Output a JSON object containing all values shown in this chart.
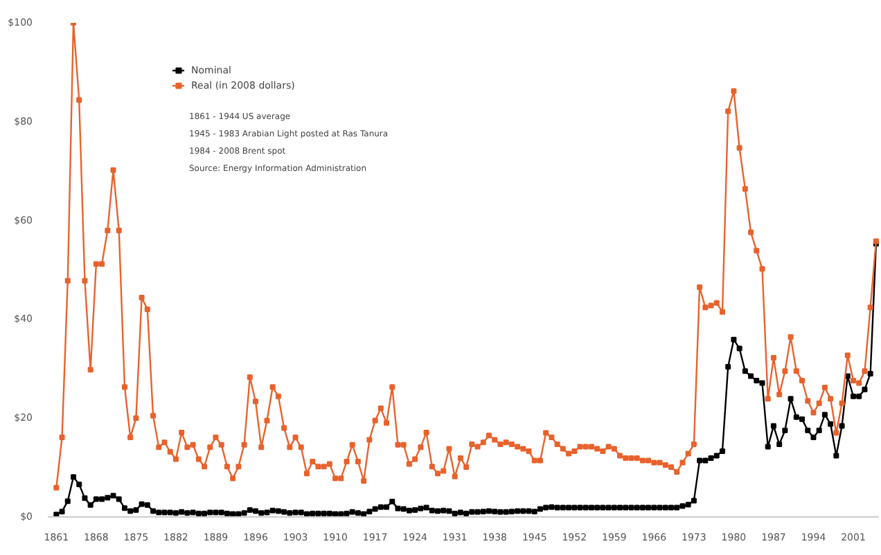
{
  "chart_data": {
    "type": "line",
    "x": [
      1861,
      1862,
      1863,
      1864,
      1865,
      1866,
      1867,
      1868,
      1869,
      1870,
      1871,
      1872,
      1873,
      1874,
      1875,
      1876,
      1877,
      1878,
      1879,
      1880,
      1881,
      1882,
      1883,
      1884,
      1885,
      1886,
      1887,
      1888,
      1889,
      1890,
      1891,
      1892,
      1893,
      1894,
      1895,
      1896,
      1897,
      1898,
      1899,
      1900,
      1901,
      1902,
      1903,
      1904,
      1905,
      1906,
      1907,
      1908,
      1909,
      1910,
      1911,
      1912,
      1913,
      1914,
      1915,
      1916,
      1917,
      1918,
      1919,
      1920,
      1921,
      1922,
      1923,
      1924,
      1925,
      1926,
      1927,
      1928,
      1929,
      1930,
      1931,
      1932,
      1933,
      1934,
      1935,
      1936,
      1937,
      1938,
      1939,
      1940,
      1941,
      1942,
      1943,
      1944,
      1945,
      1946,
      1947,
      1948,
      1949,
      1950,
      1951,
      1952,
      1953,
      1954,
      1955,
      1956,
      1957,
      1958,
      1959,
      1960,
      1961,
      1962,
      1963,
      1964,
      1965,
      1966,
      1967,
      1968,
      1969,
      1970,
      1971,
      1972,
      1973,
      1974,
      1975,
      1976,
      1977,
      1978,
      1979,
      1980,
      1981,
      1982,
      1983,
      1984,
      1985,
      1986,
      1987,
      1988,
      1989,
      1990,
      1991,
      1992,
      1993,
      1994,
      1995,
      1996,
      1997,
      1998,
      1999,
      2000,
      2001,
      2002,
      2003,
      2004,
      2005
    ],
    "series": [
      {
        "name": "Nominal",
        "color": "#000000",
        "values": [
          0.5,
          1.1,
          3.2,
          8.1,
          6.6,
          3.8,
          2.4,
          3.6,
          3.6,
          3.9,
          4.3,
          3.6,
          1.8,
          1.2,
          1.4,
          2.6,
          2.4,
          1.2,
          0.9,
          0.9,
          0.9,
          0.8,
          1.0,
          0.8,
          0.9,
          0.7,
          0.7,
          0.9,
          0.9,
          0.9,
          0.7,
          0.6,
          0.6,
          0.8,
          1.4,
          1.2,
          0.8,
          0.9,
          1.3,
          1.2,
          1.0,
          0.8,
          0.9,
          0.9,
          0.6,
          0.7,
          0.7,
          0.7,
          0.7,
          0.6,
          0.6,
          0.7,
          1.0,
          0.8,
          0.6,
          1.1,
          1.6,
          2.0,
          2.0,
          3.1,
          1.7,
          1.6,
          1.3,
          1.4,
          1.7,
          1.9,
          1.3,
          1.2,
          1.3,
          1.2,
          0.7,
          0.9,
          0.7,
          1.0,
          1.0,
          1.1,
          1.2,
          1.1,
          1.0,
          1.0,
          1.1,
          1.2,
          1.2,
          1.2,
          1.1,
          1.6,
          1.9,
          2.0,
          1.9,
          1.9,
          1.9,
          1.9,
          1.9,
          1.9,
          1.9,
          1.9,
          1.9,
          1.9,
          1.9,
          1.9,
          1.9,
          1.9,
          1.9,
          1.9,
          1.9,
          1.9,
          1.9,
          1.9,
          1.9,
          1.9,
          2.2,
          2.5,
          3.3,
          11.4,
          11.4,
          11.9,
          12.4,
          13.3,
          30.4,
          35.9,
          34.1,
          29.5,
          28.5,
          27.6,
          27.1,
          14.2,
          18.4,
          14.7,
          17.5,
          23.9,
          20.2,
          19.8,
          17.5,
          16.1,
          17.5,
          20.7,
          18.8,
          12.4,
          18.4,
          28.5,
          24.4,
          24.4,
          25.8,
          29,
          55.3
        ]
      },
      {
        "name": "Real (in 2008 dollars)",
        "color": "#e8622c",
        "values": [
          5.9,
          16.1,
          47.8,
          100,
          84.4,
          47.8,
          29.8,
          51.2,
          51.2,
          58,
          70.2,
          58,
          26.3,
          16.1,
          20,
          44.4,
          42,
          20.5,
          14.1,
          15.1,
          13.2,
          11.7,
          17.1,
          14.1,
          14.6,
          11.7,
          10.2,
          14.1,
          16.1,
          14.6,
          10.2,
          7.8,
          10.2,
          14.6,
          28.3,
          23.4,
          14.1,
          19.5,
          26.3,
          24.4,
          18,
          14.1,
          16.1,
          14.1,
          8.8,
          11.2,
          10.2,
          10.2,
          10.7,
          7.8,
          7.8,
          11.2,
          14.6,
          11.2,
          7.3,
          15.6,
          19.5,
          22,
          19,
          26.3,
          14.6,
          14.6,
          10.7,
          11.7,
          14.1,
          17.1,
          10.2,
          8.8,
          9.3,
          13.8,
          8.2,
          11.9,
          10.1,
          14.7,
          14.2,
          15.1,
          16.5,
          15.6,
          14.7,
          15.1,
          14.7,
          14.2,
          13.8,
          13.3,
          11.4,
          11.4,
          17,
          16.1,
          14.7,
          13.8,
          12.8,
          13.3,
          14.2,
          14.2,
          14.2,
          13.8,
          13.3,
          14.2,
          13.8,
          12.4,
          11.9,
          11.9,
          11.9,
          11.4,
          11.4,
          11,
          11,
          10.5,
          10.1,
          9.1,
          11,
          12.8,
          14.7,
          46.5,
          42.4,
          42.8,
          43.3,
          41.5,
          82.1,
          86.2,
          74.7,
          66.4,
          57.6,
          53.9,
          50.2,
          23.9,
          32.2,
          24.8,
          29.5,
          36.4,
          29.5,
          27.6,
          23.5,
          21.1,
          23,
          26.2,
          23.9,
          17,
          23,
          32.7,
          27.6,
          27.1,
          29.5,
          42.4,
          55.8
        ]
      }
    ],
    "xlim": [
      1859.5,
      2005.5
    ],
    "xticks": [
      1861,
      1868,
      1875,
      1882,
      1889,
      1896,
      1903,
      1910,
      1917,
      1924,
      1931,
      1938,
      1945,
      1952,
      1959,
      1966,
      1973,
      1980,
      1987,
      1994,
      2001
    ],
    "ylim": [
      0,
      100
    ],
    "yticks": [
      {
        "value": 0,
        "label": "$0"
      },
      {
        "value": 20,
        "label": "$20"
      },
      {
        "value": 40,
        "label": "$40"
      },
      {
        "value": 60,
        "label": "$60"
      },
      {
        "value": 80,
        "label": "$80"
      },
      {
        "value": 100,
        "label": "$100"
      }
    ],
    "marker": "square",
    "line_style": "solid",
    "grid": false,
    "legend": "top left",
    "annotations": [
      "1861 - 1944 US average",
      "1945 - 1983 Arabian Light posted at Ras Tanura",
      "1984 - 2008 Brent spot",
      "Source: Energy Information Administration"
    ]
  }
}
